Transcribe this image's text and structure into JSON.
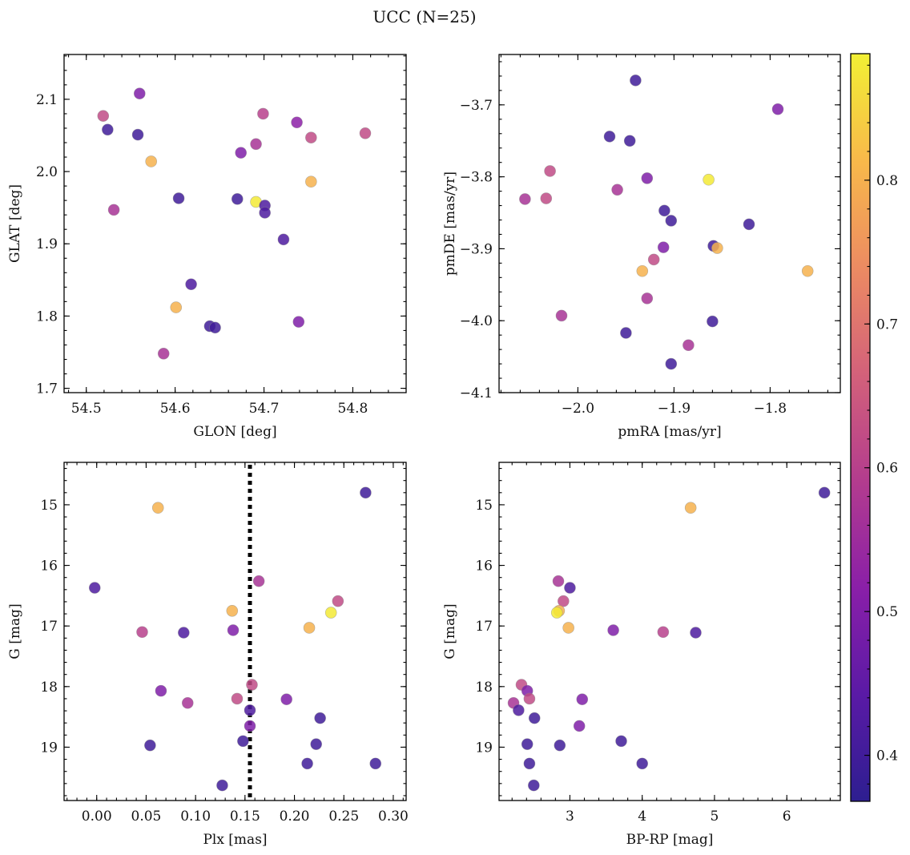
{
  "title": "UCC (N=25)",
  "chart_data": [
    {
      "type": "scatter",
      "xlabel": "GLON [deg]",
      "ylabel": "GLAT [deg]",
      "xlim": [
        54.475,
        54.86
      ],
      "ylim": [
        1.694,
        2.162
      ],
      "y_inverted": false,
      "xticks": [
        54.5,
        54.6,
        54.7,
        54.8
      ],
      "xtick_labels": [
        "54.5",
        "54.6",
        "54.7",
        "54.8"
      ],
      "yticks": [
        1.7,
        1.8,
        1.9,
        2.0,
        2.1
      ],
      "ytick_labels": [
        "1.7",
        "1.8",
        "1.9",
        "2.0",
        "2.1"
      ],
      "points": [
        {
          "x": 54.524,
          "y": 2.058,
          "c": 0.4
        },
        {
          "x": 54.519,
          "y": 2.077,
          "c": 0.62
        },
        {
          "x": 54.56,
          "y": 2.108,
          "c": 0.5
        },
        {
          "x": 54.558,
          "y": 2.051,
          "c": 0.4
        },
        {
          "x": 54.573,
          "y": 2.014,
          "c": 0.8
        },
        {
          "x": 54.531,
          "y": 1.947,
          "c": 0.57
        },
        {
          "x": 54.604,
          "y": 1.963,
          "c": 0.4
        },
        {
          "x": 54.618,
          "y": 1.844,
          "c": 0.42
        },
        {
          "x": 54.601,
          "y": 1.812,
          "c": 0.8
        },
        {
          "x": 54.587,
          "y": 1.748,
          "c": 0.57
        },
        {
          "x": 54.639,
          "y": 1.786,
          "c": 0.4
        },
        {
          "x": 54.645,
          "y": 1.784,
          "c": 0.4
        },
        {
          "x": 54.67,
          "y": 1.962,
          "c": 0.4
        },
        {
          "x": 54.691,
          "y": 1.958,
          "c": 0.88
        },
        {
          "x": 54.701,
          "y": 1.953,
          "c": 0.42
        },
        {
          "x": 54.701,
          "y": 1.943,
          "c": 0.42
        },
        {
          "x": 54.674,
          "y": 2.026,
          "c": 0.5
        },
        {
          "x": 54.691,
          "y": 2.038,
          "c": 0.57
        },
        {
          "x": 54.699,
          "y": 2.08,
          "c": 0.6
        },
        {
          "x": 54.722,
          "y": 1.906,
          "c": 0.42
        },
        {
          "x": 54.737,
          "y": 2.068,
          "c": 0.52
        },
        {
          "x": 54.753,
          "y": 2.047,
          "c": 0.62
        },
        {
          "x": 54.753,
          "y": 1.986,
          "c": 0.8
        },
        {
          "x": 54.739,
          "y": 1.792,
          "c": 0.5
        },
        {
          "x": 54.814,
          "y": 2.053,
          "c": 0.62
        }
      ]
    },
    {
      "type": "scatter",
      "xlabel": "pmRA [mas/yr]",
      "ylabel": "pmDE [mas/yr]",
      "xlim": [
        -2.082,
        -1.727
      ],
      "ylim": [
        -4.1,
        -3.63
      ],
      "y_inverted": false,
      "xticks": [
        -2.0,
        -1.9,
        -1.8
      ],
      "xtick_labels": [
        "−2.0",
        "−1.9",
        "−1.8"
      ],
      "yticks": [
        -4.1,
        -4.0,
        -3.9,
        -3.8,
        -3.7
      ],
      "ytick_labels": [
        "−4.1",
        "−4.0",
        "−3.9",
        "−3.8",
        "−3.7"
      ],
      "points": [
        {
          "x": -1.94,
          "y": -3.666,
          "c": 0.4
        },
        {
          "x": -1.792,
          "y": -3.706,
          "c": 0.5
        },
        {
          "x": -1.967,
          "y": -3.744,
          "c": 0.4
        },
        {
          "x": -1.946,
          "y": -3.75,
          "c": 0.4
        },
        {
          "x": -2.029,
          "y": -3.792,
          "c": 0.62
        },
        {
          "x": -1.928,
          "y": -3.802,
          "c": 0.5
        },
        {
          "x": -1.864,
          "y": -3.804,
          "c": 0.88
        },
        {
          "x": -1.959,
          "y": -3.818,
          "c": 0.57
        },
        {
          "x": -2.055,
          "y": -3.831,
          "c": 0.57
        },
        {
          "x": -2.033,
          "y": -3.83,
          "c": 0.62
        },
        {
          "x": -1.91,
          "y": -3.847,
          "c": 0.4
        },
        {
          "x": -1.903,
          "y": -3.861,
          "c": 0.4
        },
        {
          "x": -1.822,
          "y": -3.866,
          "c": 0.4
        },
        {
          "x": -1.859,
          "y": -3.896,
          "c": 0.4
        },
        {
          "x": -1.855,
          "y": -3.899,
          "c": 0.8
        },
        {
          "x": -1.911,
          "y": -3.898,
          "c": 0.5
        },
        {
          "x": -1.921,
          "y": -3.915,
          "c": 0.62
        },
        {
          "x": -1.933,
          "y": -3.931,
          "c": 0.8
        },
        {
          "x": -1.761,
          "y": -3.931,
          "c": 0.8
        },
        {
          "x": -1.928,
          "y": -3.969,
          "c": 0.57
        },
        {
          "x": -2.017,
          "y": -3.993,
          "c": 0.57
        },
        {
          "x": -1.86,
          "y": -4.001,
          "c": 0.4
        },
        {
          "x": -1.95,
          "y": -4.017,
          "c": 0.4
        },
        {
          "x": -1.885,
          "y": -4.034,
          "c": 0.57
        },
        {
          "x": -1.903,
          "y": -4.06,
          "c": 0.4
        }
      ]
    },
    {
      "type": "scatter",
      "xlabel": "Plx [mas]",
      "ylabel": "G [mag]",
      "xlim": [
        -0.033,
        0.313
      ],
      "ylim": [
        14.3,
        19.88
      ],
      "y_inverted": true,
      "xticks": [
        0.0,
        0.05,
        0.1,
        0.15,
        0.2,
        0.25,
        0.3
      ],
      "xtick_labels": [
        "0.00",
        "0.05",
        "0.10",
        "0.15",
        "0.20",
        "0.25",
        "0.30"
      ],
      "yticks": [
        15,
        16,
        17,
        18,
        19
      ],
      "ytick_labels": [
        "15",
        "16",
        "17",
        "18",
        "19"
      ],
      "vline": {
        "x": 0.155,
        "style": "dotted",
        "color": "#000000"
      },
      "points": [
        {
          "x": 0.062,
          "y": 15.05,
          "c": 0.8
        },
        {
          "x": 0.272,
          "y": 14.8,
          "c": 0.4
        },
        {
          "x": -0.002,
          "y": 16.37,
          "c": 0.42
        },
        {
          "x": 0.164,
          "y": 16.26,
          "c": 0.57
        },
        {
          "x": 0.244,
          "y": 16.59,
          "c": 0.62
        },
        {
          "x": 0.137,
          "y": 16.75,
          "c": 0.8
        },
        {
          "x": 0.237,
          "y": 16.78,
          "c": 0.88
        },
        {
          "x": 0.046,
          "y": 17.1,
          "c": 0.6
        },
        {
          "x": 0.088,
          "y": 17.11,
          "c": 0.42
        },
        {
          "x": 0.138,
          "y": 17.07,
          "c": 0.5
        },
        {
          "x": 0.215,
          "y": 17.03,
          "c": 0.8
        },
        {
          "x": 0.157,
          "y": 17.97,
          "c": 0.62
        },
        {
          "x": 0.065,
          "y": 18.07,
          "c": 0.5
        },
        {
          "x": 0.092,
          "y": 18.27,
          "c": 0.57
        },
        {
          "x": 0.142,
          "y": 18.2,
          "c": 0.62
        },
        {
          "x": 0.192,
          "y": 18.21,
          "c": 0.5
        },
        {
          "x": 0.155,
          "y": 18.39,
          "c": 0.42
        },
        {
          "x": 0.226,
          "y": 18.52,
          "c": 0.4
        },
        {
          "x": 0.155,
          "y": 18.65,
          "c": 0.5
        },
        {
          "x": 0.148,
          "y": 18.9,
          "c": 0.4
        },
        {
          "x": 0.054,
          "y": 18.97,
          "c": 0.4
        },
        {
          "x": 0.222,
          "y": 18.95,
          "c": 0.4
        },
        {
          "x": 0.213,
          "y": 19.27,
          "c": 0.4
        },
        {
          "x": 0.282,
          "y": 19.27,
          "c": 0.4
        },
        {
          "x": 0.127,
          "y": 19.63,
          "c": 0.4
        }
      ]
    },
    {
      "type": "scatter",
      "xlabel": "BP-RP [mag]",
      "ylabel": "G [mag]",
      "xlim": [
        2.02,
        6.74
      ],
      "ylim": [
        14.3,
        19.88
      ],
      "y_inverted": true,
      "xticks": [
        3,
        4,
        5,
        6
      ],
      "xtick_labels": [
        "3",
        "4",
        "5",
        "6"
      ],
      "yticks": [
        15,
        16,
        17,
        18,
        19
      ],
      "ytick_labels": [
        "15",
        "16",
        "17",
        "18",
        "19"
      ],
      "points": [
        {
          "x": 6.52,
          "y": 14.8,
          "c": 0.4
        },
        {
          "x": 4.67,
          "y": 15.05,
          "c": 0.8
        },
        {
          "x": 2.84,
          "y": 16.26,
          "c": 0.57
        },
        {
          "x": 3.0,
          "y": 16.37,
          "c": 0.42
        },
        {
          "x": 2.91,
          "y": 16.59,
          "c": 0.62
        },
        {
          "x": 2.85,
          "y": 16.75,
          "c": 0.8
        },
        {
          "x": 2.82,
          "y": 16.78,
          "c": 0.88
        },
        {
          "x": 2.98,
          "y": 17.03,
          "c": 0.8
        },
        {
          "x": 3.6,
          "y": 17.07,
          "c": 0.5
        },
        {
          "x": 4.29,
          "y": 17.1,
          "c": 0.6
        },
        {
          "x": 4.74,
          "y": 17.11,
          "c": 0.42
        },
        {
          "x": 2.33,
          "y": 17.97,
          "c": 0.62
        },
        {
          "x": 2.41,
          "y": 18.07,
          "c": 0.5
        },
        {
          "x": 2.44,
          "y": 18.2,
          "c": 0.62
        },
        {
          "x": 3.17,
          "y": 18.21,
          "c": 0.5
        },
        {
          "x": 2.22,
          "y": 18.27,
          "c": 0.57
        },
        {
          "x": 2.29,
          "y": 18.39,
          "c": 0.42
        },
        {
          "x": 2.51,
          "y": 18.52,
          "c": 0.4
        },
        {
          "x": 3.13,
          "y": 18.65,
          "c": 0.5
        },
        {
          "x": 3.71,
          "y": 18.9,
          "c": 0.4
        },
        {
          "x": 2.41,
          "y": 18.95,
          "c": 0.4
        },
        {
          "x": 2.86,
          "y": 18.97,
          "c": 0.4
        },
        {
          "x": 2.44,
          "y": 19.27,
          "c": 0.4
        },
        {
          "x": 4.0,
          "y": 19.27,
          "c": 0.4
        },
        {
          "x": 2.5,
          "y": 19.63,
          "c": 0.4
        }
      ]
    }
  ],
  "colorbar": {
    "colormap": "plasma",
    "range": [
      0.368,
      0.888
    ],
    "ticks": [
      0.4,
      0.5,
      0.6,
      0.7,
      0.8
    ],
    "tick_labels": [
      "0.4",
      "0.5",
      "0.6",
      "0.7",
      "0.8"
    ],
    "colors": [
      "#2d1e90",
      "#5a1aa6",
      "#8a1fa8",
      "#b33c8e",
      "#d3617a",
      "#ec8b62",
      "#f8b94a",
      "#f2f034"
    ]
  },
  "marker": {
    "alpha": 0.85,
    "edge_color": "#888888"
  }
}
